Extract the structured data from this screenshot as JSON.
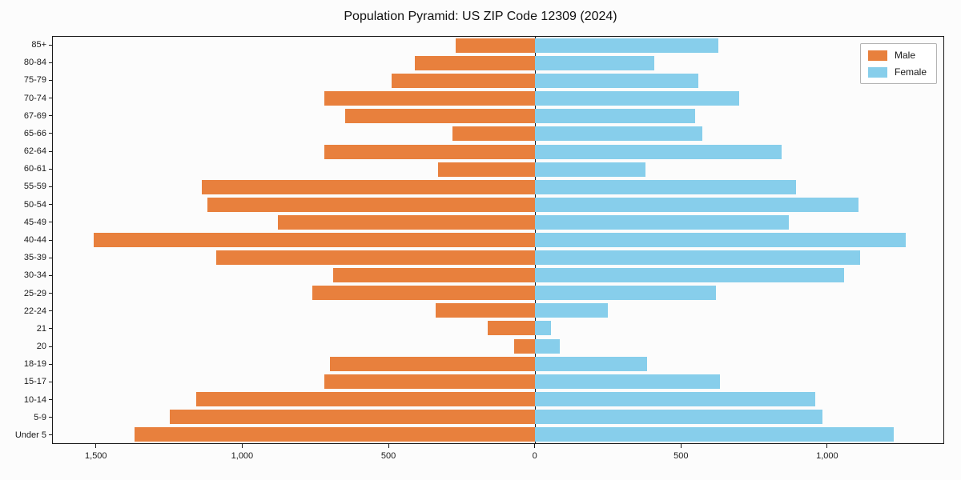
{
  "chart_data": {
    "type": "bar",
    "variant": "population-pyramid",
    "title": "Population Pyramid: US ZIP Code 12309 (2024)",
    "categories_top_to_bottom": [
      "85+",
      "80-84",
      "75-79",
      "70-74",
      "67-69",
      "65-66",
      "62-64",
      "60-61",
      "55-59",
      "50-54",
      "45-49",
      "40-44",
      "35-39",
      "30-34",
      "25-29",
      "22-24",
      "21",
      "20",
      "18-19",
      "15-17",
      "10-14",
      "5-9",
      "Under 5"
    ],
    "series": [
      {
        "name": "Male",
        "side": "left",
        "color": "#E8803D",
        "values": [
          270,
          410,
          490,
          720,
          650,
          280,
          720,
          330,
          1140,
          1120,
          880,
          1510,
          1090,
          690,
          760,
          340,
          160,
          70,
          700,
          720,
          1160,
          1250,
          1370
        ]
      },
      {
        "name": "Female",
        "side": "right",
        "color": "#87CEEB",
        "values": [
          630,
          410,
          560,
          700,
          550,
          575,
          845,
          380,
          895,
          1110,
          870,
          1270,
          1115,
          1060,
          620,
          250,
          55,
          85,
          385,
          635,
          960,
          985,
          1230
        ]
      }
    ],
    "x_axis": {
      "tick_values": [
        -1500,
        -1000,
        -500,
        0,
        500,
        1000
      ],
      "tick_labels": [
        "1,500",
        "1,000",
        "500",
        "0",
        "500",
        "1,000"
      ],
      "left_max": 1650,
      "right_max": 1400
    },
    "legend": {
      "position": "upper-right",
      "labels": [
        "Male",
        "Female"
      ]
    },
    "grid": false
  }
}
